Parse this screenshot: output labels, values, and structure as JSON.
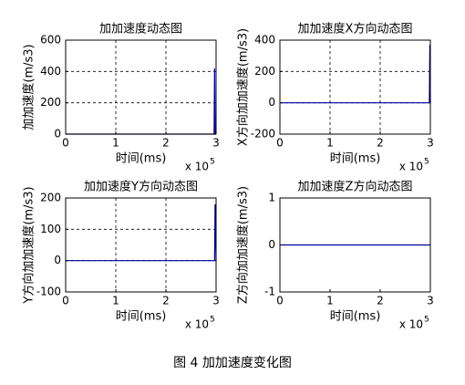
{
  "chart_data": [
    {
      "type": "line",
      "title": "加加速度动态图",
      "xlabel": "时间(ms)",
      "ylabel": "加加速度(m/s3)",
      "x_multiplier": "x 10",
      "x_multiplier_exponent": 5,
      "xlim": [
        0,
        3
      ],
      "xticks": [
        0,
        1,
        2,
        3
      ],
      "ylim": [
        0,
        600
      ],
      "yticks": [
        0,
        200,
        400,
        600
      ],
      "grid": true,
      "x": [
        0,
        2.96,
        2.97,
        2.98,
        3
      ],
      "series": [
        {
          "color": "#0000a0",
          "values": [
            0,
            0,
            420,
            0,
            0
          ]
        }
      ]
    },
    {
      "type": "line",
      "title": "加加速度X方向动态图",
      "xlabel": "时间(ms)",
      "ylabel": "X方向加加速度(m/s3)",
      "x_multiplier": "x 10",
      "x_multiplier_exponent": 5,
      "xlim": [
        0,
        3
      ],
      "xticks": [
        0,
        1,
        2,
        3
      ],
      "ylim": [
        -200,
        400
      ],
      "yticks": [
        -200,
        0,
        200,
        400
      ],
      "grid": true,
      "x": [
        0,
        2.98,
        2.99,
        3
      ],
      "series": [
        {
          "color": "#0000a0",
          "values": [
            0,
            0,
            370,
            0
          ]
        }
      ]
    },
    {
      "type": "line",
      "title": "加加速度Y方向动态图",
      "xlabel": "时间(ms)",
      "ylabel": "Y方向加加速度(m/s3)",
      "x_multiplier": "x 10",
      "x_multiplier_exponent": 5,
      "xlim": [
        0,
        3
      ],
      "xticks": [
        0,
        1,
        2,
        3
      ],
      "ylim": [
        -100,
        200
      ],
      "yticks": [
        -100,
        0,
        100,
        200
      ],
      "grid": true,
      "x": [
        0,
        2.97,
        2.98,
        3
      ],
      "series": [
        {
          "color": "#0000a0",
          "values": [
            0,
            0,
            180,
            0
          ]
        }
      ]
    },
    {
      "type": "line",
      "title": "加加速度Z方向动态图",
      "xlabel": "时间(ms)",
      "ylabel": "Z方向加加速度(m/s3)",
      "x_multiplier": "x 10",
      "x_multiplier_exponent": 5,
      "xlim": [
        0,
        3
      ],
      "xticks": [
        0,
        1,
        2,
        3
      ],
      "ylim": [
        -1,
        1
      ],
      "yticks": [
        -1,
        0,
        1
      ],
      "grid": false,
      "x": [
        0,
        3
      ],
      "series": [
        {
          "color": "#0000a0",
          "values": [
            0,
            0
          ]
        }
      ]
    }
  ],
  "caption": "图 4  加加速度变化图"
}
